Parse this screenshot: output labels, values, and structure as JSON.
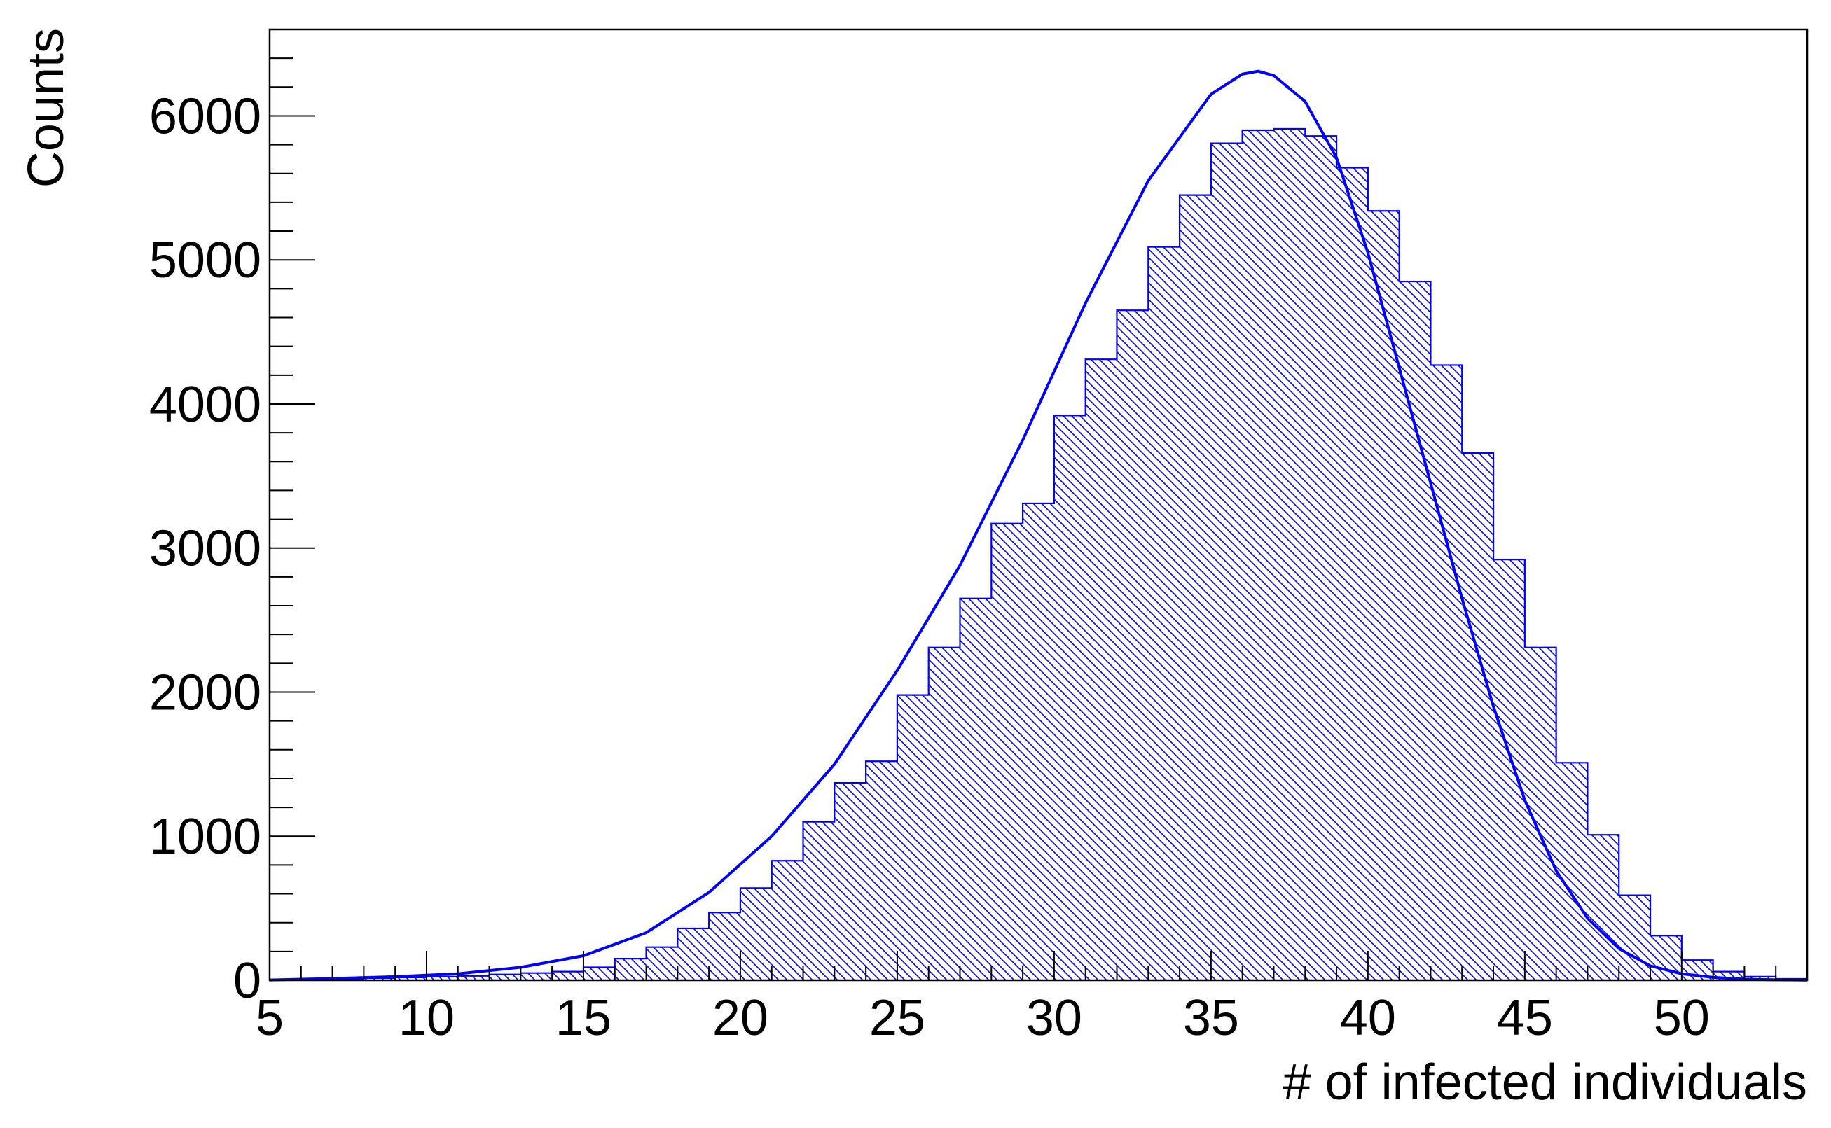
{
  "chart_data": {
    "type": "bar",
    "title": "",
    "xlabel": "# of infected individuals",
    "ylabel": "Counts",
    "xlim": [
      5,
      54
    ],
    "ylim": [
      0,
      6600
    ],
    "x_ticks": [
      5,
      10,
      15,
      20,
      25,
      30,
      35,
      40,
      45,
      50
    ],
    "y_ticks": [
      0,
      1000,
      2000,
      3000,
      4000,
      5000,
      6000
    ],
    "x_tick_labels": [
      "5",
      "10",
      "15",
      "20",
      "25",
      "30",
      "35",
      "40",
      "45",
      "50"
    ],
    "y_tick_labels": [
      "0",
      "1000",
      "2000",
      "3000",
      "4000",
      "5000",
      "6000"
    ],
    "grid": false,
    "legend": "none",
    "histogram": {
      "bin_width": 1,
      "bin_start": 5,
      "values": [
        2,
        5,
        10,
        15,
        20,
        25,
        30,
        40,
        50,
        60,
        90,
        150,
        230,
        360,
        470,
        640,
        830,
        1100,
        1370,
        1520,
        1980,
        2310,
        2650,
        3170,
        3310,
        3920,
        4310,
        4650,
        5090,
        5450,
        5810,
        5900,
        5910,
        5860,
        5640,
        5340,
        4850,
        4270,
        3660,
        2920,
        2310,
        1510,
        1010,
        590,
        310,
        140,
        60,
        25,
        10
      ],
      "style": "hatched",
      "color": "#0000ff"
    },
    "fit_curve": {
      "x": [
        5,
        7,
        9,
        11,
        13,
        15,
        17,
        19,
        21,
        23,
        25,
        27,
        29,
        31,
        33,
        35,
        36,
        36.5,
        37,
        38,
        39,
        40,
        41,
        42,
        43,
        44,
        45,
        46,
        47,
        48,
        49,
        50,
        51,
        52,
        53,
        54
      ],
      "y": [
        2,
        12,
        25,
        45,
        90,
        170,
        330,
        610,
        1000,
        1500,
        2150,
        2880,
        3750,
        4700,
        5550,
        6150,
        6290,
        6310,
        6280,
        6100,
        5710,
        5050,
        4250,
        3450,
        2650,
        1900,
        1250,
        760,
        430,
        220,
        100,
        45,
        20,
        8,
        3,
        1
      ],
      "color": "#0000ff"
    }
  }
}
